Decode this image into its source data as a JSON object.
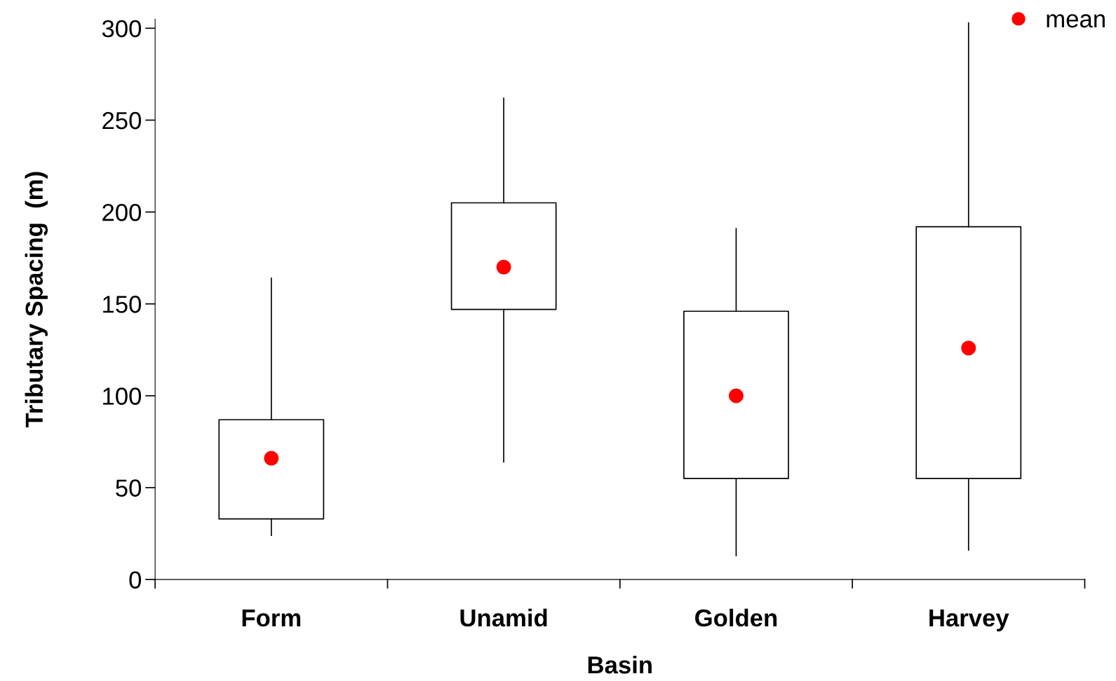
{
  "chart_data": {
    "type": "box",
    "xlabel": "Basin",
    "ylabel": "Tributary Spacing  (m)",
    "categories": [
      "Form",
      "Unamid",
      "Golden",
      "Harvey"
    ],
    "boxes": [
      {
        "low": 24,
        "q1": 33,
        "q3": 87,
        "high": 164
      },
      {
        "low": 64,
        "q1": 147,
        "q3": 205,
        "high": 262
      },
      {
        "low": 13,
        "q1": 55,
        "q3": 146,
        "high": 191
      },
      {
        "low": 16,
        "q1": 55,
        "q3": 192,
        "high": 303
      }
    ],
    "series": [
      {
        "name": "mean",
        "type": "scatter",
        "color": "#ff0000",
        "x": [
          "Form",
          "Unamid",
          "Golden",
          "Harvey"
        ],
        "values": [
          66,
          170,
          100,
          126
        ]
      }
    ],
    "ylim": [
      0,
      305
    ],
    "yticks": [
      0,
      50,
      100,
      150,
      200,
      250,
      300
    ],
    "grid": false,
    "legend": "top right",
    "marker": "circle"
  }
}
